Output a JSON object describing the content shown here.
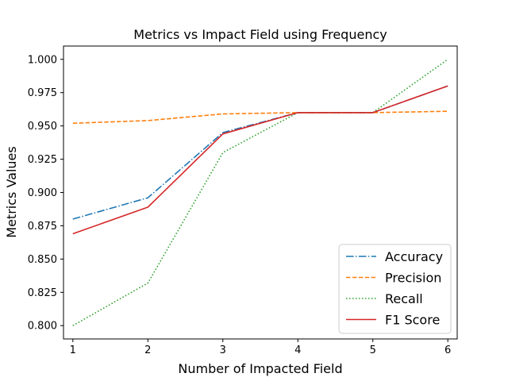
{
  "chart_data": {
    "type": "line",
    "title": "Metrics vs Impact Field using Frequency",
    "xlabel": "Number of Impacted Field",
    "ylabel": "Metrics Values",
    "x": [
      1,
      2,
      3,
      4,
      5,
      6
    ],
    "x_ticks": [
      "1",
      "2",
      "3",
      "4",
      "5",
      "6"
    ],
    "xlim": [
      0.875,
      6.125
    ],
    "ylim": [
      0.79,
      1.01
    ],
    "y_ticks": [
      "0.800",
      "0.825",
      "0.850",
      "0.875",
      "0.900",
      "0.925",
      "0.950",
      "0.975",
      "1.000"
    ],
    "y_tick_values": [
      0.8,
      0.825,
      0.85,
      0.875,
      0.9,
      0.925,
      0.95,
      0.975,
      1.0
    ],
    "grid": false,
    "legend_position": "lower-right",
    "series": [
      {
        "name": "Accuracy",
        "values": [
          0.88,
          0.896,
          0.945,
          0.96,
          0.96,
          0.98
        ],
        "color": "#1f77b4",
        "style": "dashdot"
      },
      {
        "name": "Precision",
        "values": [
          0.952,
          0.954,
          0.959,
          0.96,
          0.96,
          0.961
        ],
        "color": "#ff7f0e",
        "style": "dashed"
      },
      {
        "name": "Recall",
        "values": [
          0.8,
          0.832,
          0.93,
          0.96,
          0.96,
          1.0
        ],
        "color": "#2ca02c",
        "style": "dotted"
      },
      {
        "name": "F1 Score",
        "values": [
          0.869,
          0.889,
          0.944,
          0.96,
          0.96,
          0.98
        ],
        "color": "#d62728",
        "style": "solid"
      }
    ]
  }
}
